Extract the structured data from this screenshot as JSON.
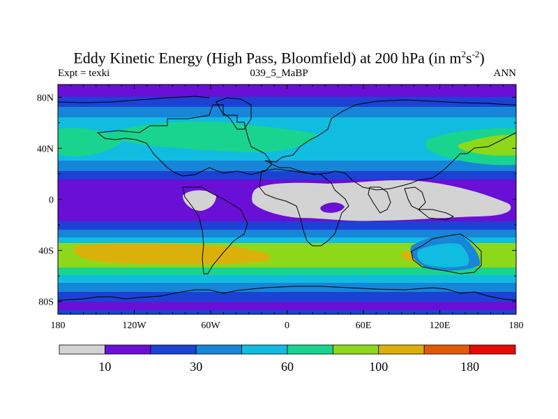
{
  "title": {
    "main": "Eddy Kinetic Energy (High Pass, Bloomfield) at 200 hPa (in m",
    "sup1": "2",
    "mid": "s",
    "sup2": "-2",
    "close": ")"
  },
  "subtitle": {
    "left": "Expt = texki",
    "center": "039_5_MaBP",
    "right": "ANN"
  },
  "map": {
    "lon_range": [
      -180,
      180
    ],
    "lat_range": [
      -90,
      90
    ],
    "lon_ticks": [
      {
        "value": -180,
        "label": "180"
      },
      {
        "value": -120,
        "label": "120W"
      },
      {
        "value": -60,
        "label": "60W"
      },
      {
        "value": 0,
        "label": "0"
      },
      {
        "value": 60,
        "label": "60E"
      },
      {
        "value": 120,
        "label": "120E"
      },
      {
        "value": 180,
        "label": "180"
      }
    ],
    "lat_ticks": [
      {
        "value": 80,
        "label": "80N"
      },
      {
        "value": 40,
        "label": "40N"
      },
      {
        "value": 0,
        "label": "0"
      },
      {
        "value": -40,
        "label": "40S"
      },
      {
        "value": -80,
        "label": "80S"
      }
    ],
    "colors": {
      "below_10": "#d3d3d3",
      "c10": "#6a0fd6",
      "c20": "#1c42d4",
      "c30": "#1785d8",
      "c45": "#10bde0",
      "c60": "#19d48e",
      "c80": "#8ed81a",
      "c100": "#dab10a",
      "c140": "#e05a08",
      "c180": "#e60a0a"
    }
  },
  "colorbar": {
    "colors": [
      "#d3d3d3",
      "#6a0fd6",
      "#1c42d4",
      "#1785d8",
      "#10bde0",
      "#19d48e",
      "#8ed81a",
      "#dab10a",
      "#e05a08",
      "#e60a0a"
    ],
    "labels": [
      {
        "after_box": 1,
        "text": "10"
      },
      {
        "after_box": 3,
        "text": "30"
      },
      {
        "after_box": 5,
        "text": "60"
      },
      {
        "after_box": 7,
        "text": "100"
      },
      {
        "after_box": 9,
        "text": "180"
      }
    ]
  }
}
